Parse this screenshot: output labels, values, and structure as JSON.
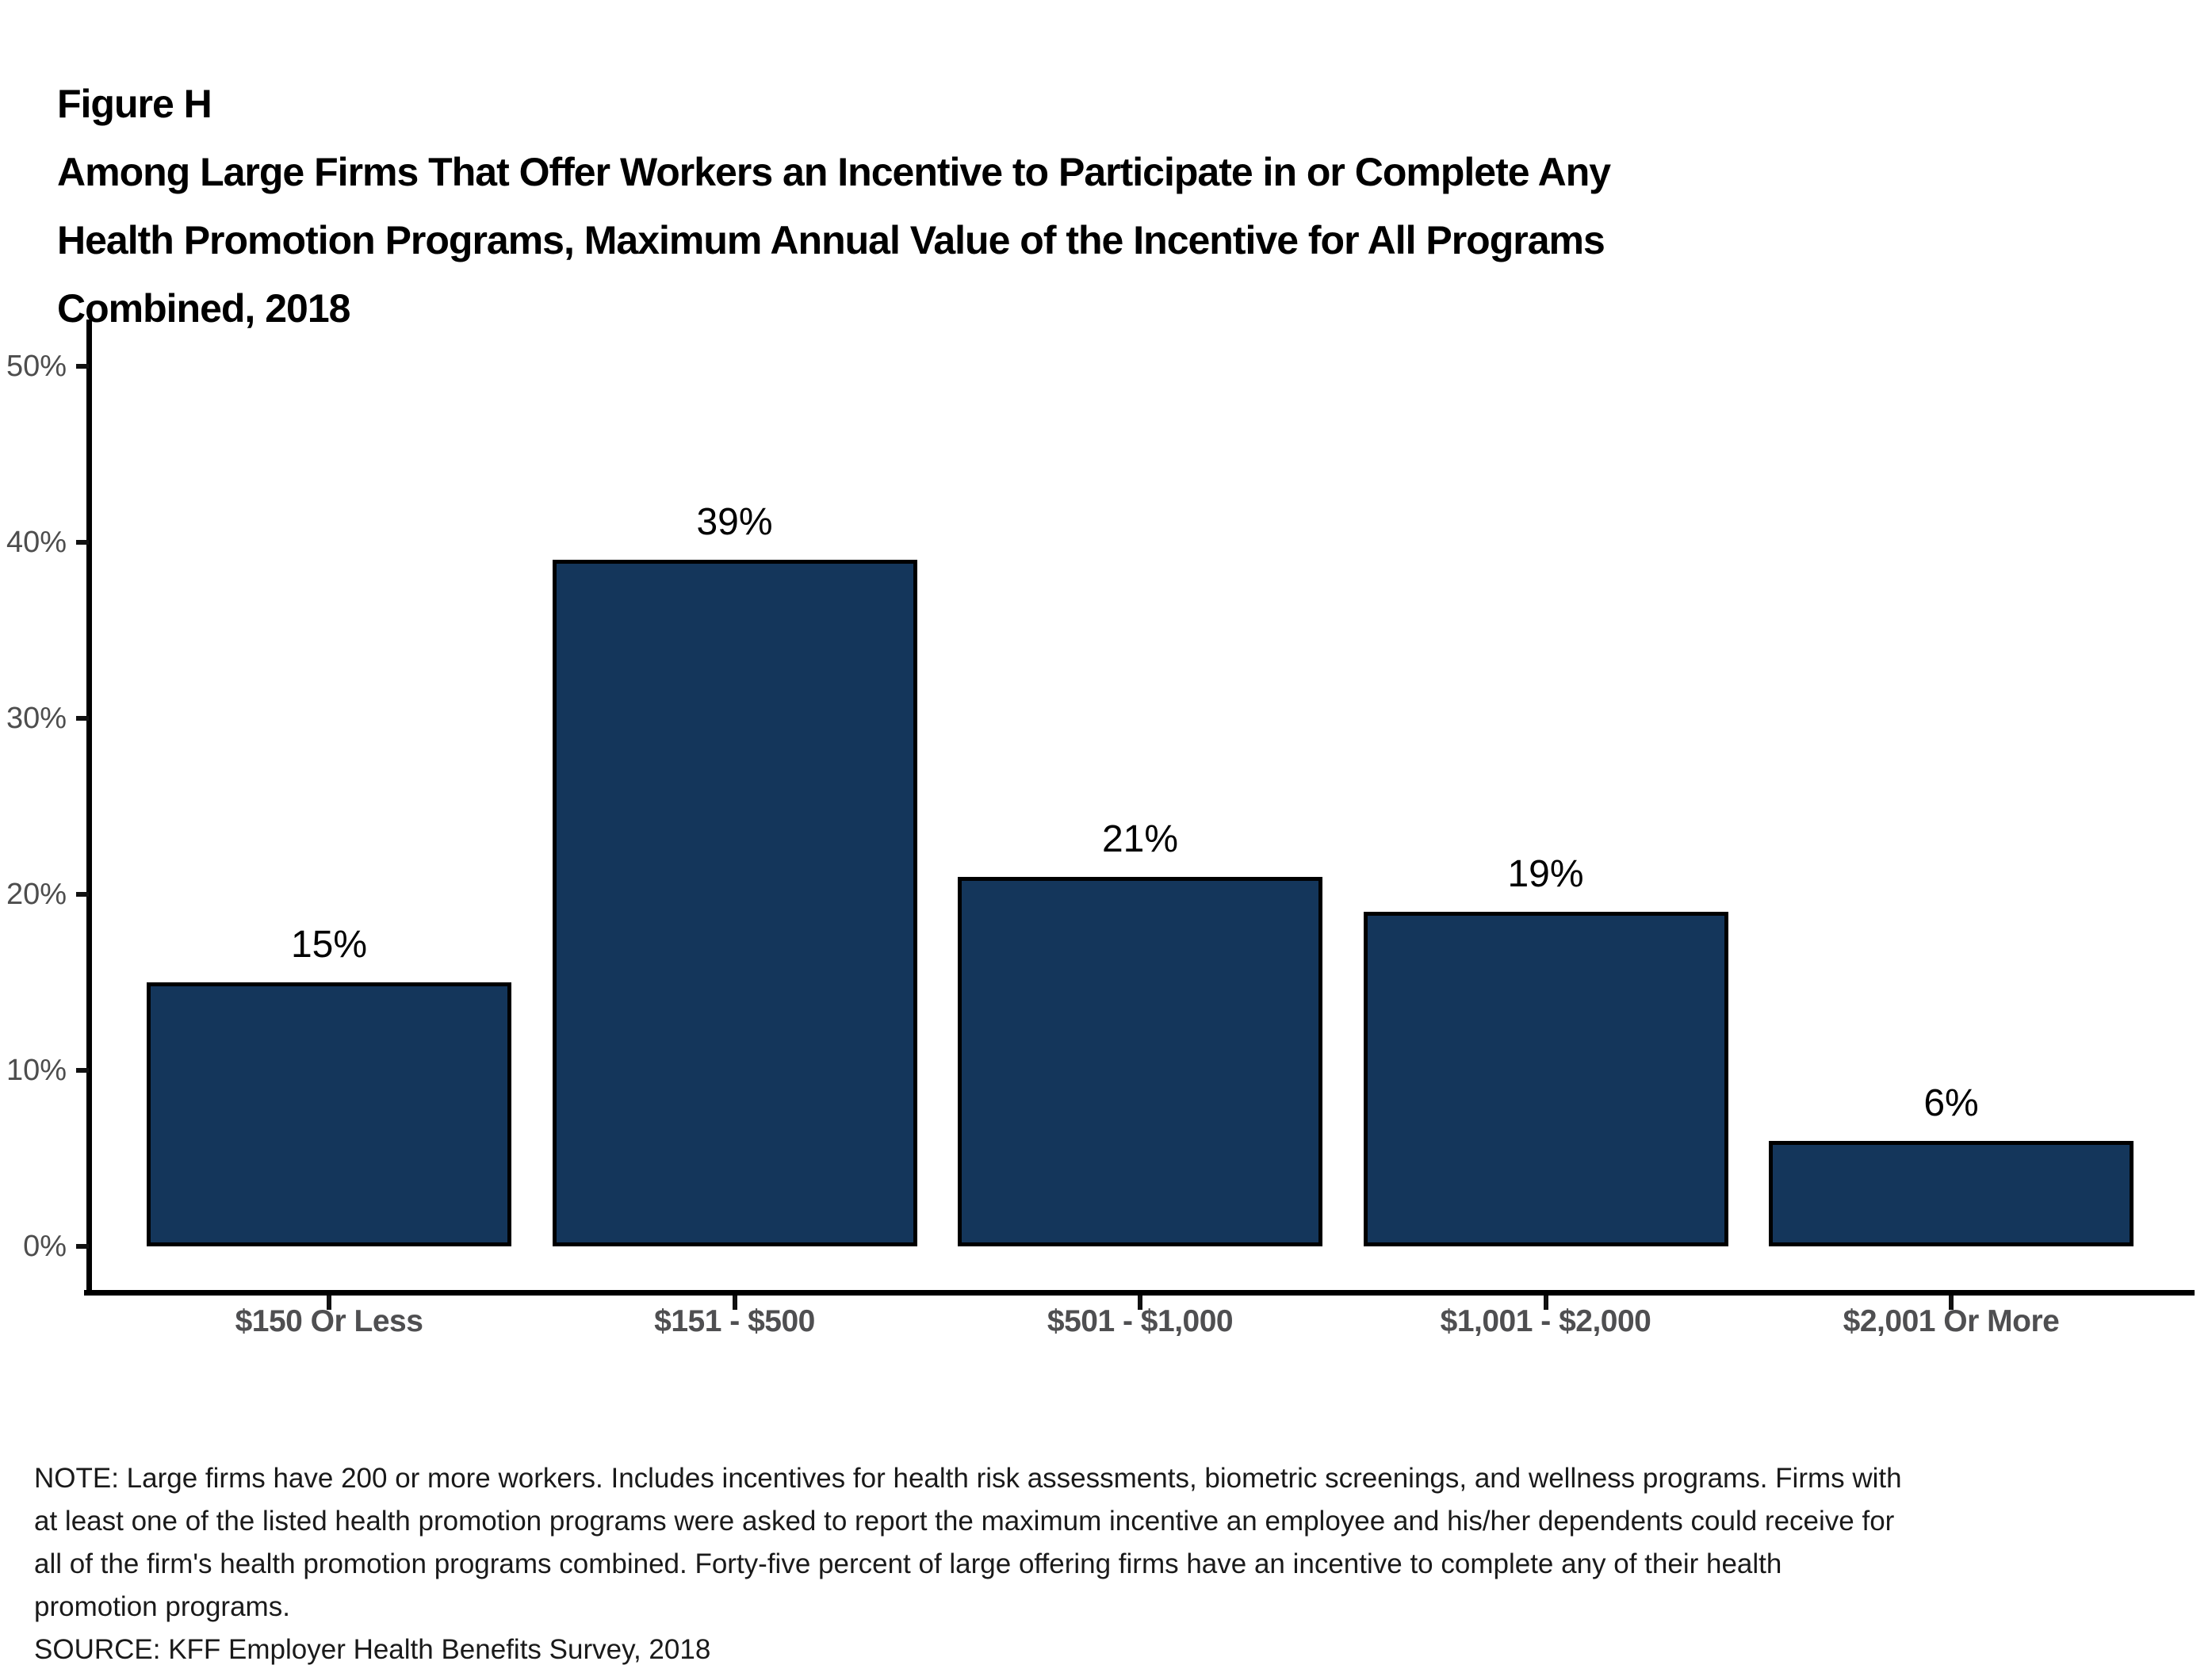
{
  "figure": {
    "label": "Figure H",
    "title_lines": [
      "Among Large Firms That Offer Workers an Incentive to Participate in or Complete Any",
      "Health Promotion Programs, Maximum Annual Value of the Incentive for All Programs",
      "Combined, 2018"
    ]
  },
  "chart_data": {
    "type": "bar",
    "title": "Figure H: Among Large Firms That Offer Workers an Incentive to Participate in or Complete Any Health Promotion Programs, Maximum Annual Value of the Incentive for All Programs Combined, 2018",
    "categories": [
      "$150 Or Less",
      "$151 - $500",
      "$501 - $1,000",
      "$1,001 - $2,000",
      "$2,001 Or More"
    ],
    "values": [
      15,
      39,
      21,
      19,
      6
    ],
    "value_labels": [
      "15%",
      "39%",
      "21%",
      "19%",
      "6%"
    ],
    "xlabel": "",
    "ylabel": "",
    "ylim": [
      0,
      50
    ],
    "ytick_values": [
      0,
      10,
      20,
      30,
      40,
      50
    ],
    "yticks": [
      "0%",
      "10%",
      "20%",
      "30%",
      "40%",
      "50%"
    ],
    "grid": false,
    "legend": "none",
    "bar_color": "#14365B",
    "bar_border_color": "#000000"
  },
  "notes": {
    "line1": "NOTE: Large firms have 200 or more workers. Includes incentives for health risk assessments, biometric screenings, and wellness programs. Firms with",
    "line2": "at least one of the listed health promotion programs were asked to report the maximum incentive an employee and his/her dependents could receive for",
    "line3": "all of the firm's health promotion programs combined. Forty-five percent of large offering firms have an incentive to complete any of their health",
    "line4": "promotion programs.",
    "source": "SOURCE: KFF Employer Health Benefits Survey, 2018"
  },
  "colors": {
    "background": "#ffffff",
    "axis": "#000000",
    "y_tick_label": "#4d4d4d",
    "x_tick_label": "#4f4f51",
    "title_text": "#000000",
    "note_text": "#1a1a1a"
  }
}
